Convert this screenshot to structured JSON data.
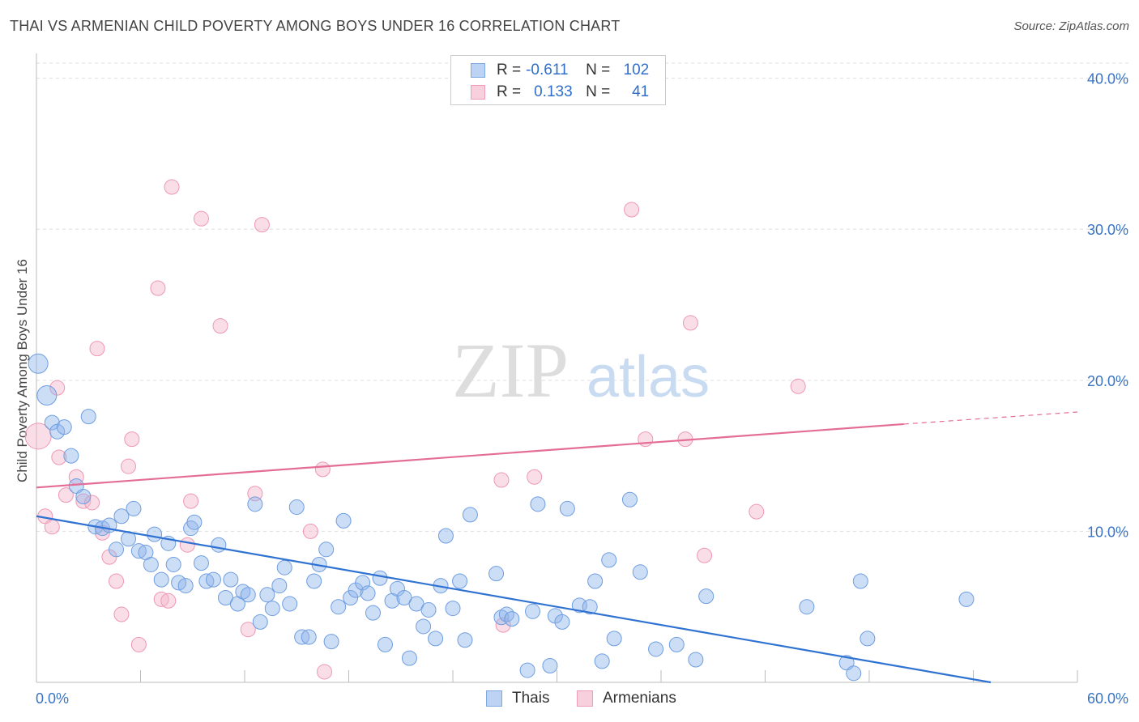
{
  "title": "THAI VS ARMENIAN CHILD POVERTY AMONG BOYS UNDER 16 CORRELATION CHART",
  "source": "Source: ZipAtlas.com",
  "watermark": {
    "zip": "ZIP",
    "atlas": "atlas"
  },
  "legend_top": {
    "r_label": "R =",
    "n_label": "N =",
    "thais": {
      "r": "-0.611",
      "n": "102"
    },
    "armenians": {
      "r": "0.133",
      "n": "41"
    }
  },
  "chart_data": {
    "type": "scatter",
    "title": "THAI VS ARMENIAN CHILD POVERTY AMONG BOYS UNDER 16 CORRELATION CHART",
    "xlabel": "",
    "ylabel": "Child Poverty Among Boys Under 16",
    "xlim": [
      0,
      60
    ],
    "ylim": [
      0,
      41
    ],
    "x_tick_labels": [
      "0.0%",
      "60.0%"
    ],
    "y_ticks": [
      10,
      20,
      30,
      40
    ],
    "y_tick_labels": [
      "10.0%",
      "20.0%",
      "30.0%",
      "40.0%"
    ],
    "grid": "horizontal dashed",
    "legend_position": "bottom-center",
    "series": [
      {
        "name": "Thais",
        "color": "#8fb4ea",
        "edge": "#6f9ee0",
        "trend": {
          "x0": 0,
          "y0": 11.0,
          "x1": 55,
          "y1": 0.0,
          "color": "#2f72d1"
        },
        "points": [
          [
            0.1,
            21.1
          ],
          [
            0.6,
            19.0
          ],
          [
            0.9,
            17.2
          ],
          [
            1.2,
            16.6
          ],
          [
            1.6,
            16.9
          ],
          [
            2.0,
            15.0
          ],
          [
            2.3,
            13.0
          ],
          [
            2.7,
            12.3
          ],
          [
            3.0,
            17.6
          ],
          [
            3.4,
            10.3
          ],
          [
            3.8,
            10.2
          ],
          [
            4.2,
            10.4
          ],
          [
            4.6,
            8.8
          ],
          [
            4.9,
            11.0
          ],
          [
            5.3,
            9.5
          ],
          [
            5.6,
            11.5
          ],
          [
            5.9,
            8.7
          ],
          [
            6.3,
            8.6
          ],
          [
            6.6,
            7.8
          ],
          [
            6.8,
            9.8
          ],
          [
            7.2,
            6.8
          ],
          [
            7.6,
            9.2
          ],
          [
            7.9,
            7.8
          ],
          [
            8.2,
            6.6
          ],
          [
            8.6,
            6.4
          ],
          [
            8.9,
            10.2
          ],
          [
            9.1,
            10.6
          ],
          [
            9.5,
            7.9
          ],
          [
            9.8,
            6.7
          ],
          [
            10.2,
            6.8
          ],
          [
            10.5,
            9.1
          ],
          [
            10.9,
            5.6
          ],
          [
            11.2,
            6.8
          ],
          [
            11.6,
            5.2
          ],
          [
            11.9,
            6.0
          ],
          [
            12.2,
            5.8
          ],
          [
            12.6,
            11.8
          ],
          [
            12.9,
            4.0
          ],
          [
            13.3,
            5.8
          ],
          [
            13.6,
            4.9
          ],
          [
            14.0,
            6.4
          ],
          [
            14.3,
            7.6
          ],
          [
            14.6,
            5.2
          ],
          [
            15.0,
            11.6
          ],
          [
            15.3,
            3.0
          ],
          [
            15.7,
            3.0
          ],
          [
            16.0,
            6.7
          ],
          [
            16.3,
            7.8
          ],
          [
            16.7,
            8.8
          ],
          [
            17.0,
            2.7
          ],
          [
            17.4,
            5.0
          ],
          [
            17.7,
            10.7
          ],
          [
            18.1,
            5.6
          ],
          [
            18.4,
            6.1
          ],
          [
            18.8,
            6.6
          ],
          [
            19.1,
            5.9
          ],
          [
            19.4,
            4.6
          ],
          [
            19.8,
            6.9
          ],
          [
            20.1,
            2.5
          ],
          [
            20.5,
            5.4
          ],
          [
            20.8,
            6.2
          ],
          [
            21.2,
            5.6
          ],
          [
            21.5,
            1.6
          ],
          [
            21.9,
            5.2
          ],
          [
            22.3,
            3.7
          ],
          [
            22.6,
            4.8
          ],
          [
            23.0,
            2.9
          ],
          [
            23.3,
            6.4
          ],
          [
            23.6,
            9.7
          ],
          [
            24.0,
            4.9
          ],
          [
            24.4,
            6.7
          ],
          [
            24.7,
            2.8
          ],
          [
            25.0,
            11.1
          ],
          [
            26.5,
            7.2
          ],
          [
            26.8,
            4.3
          ],
          [
            27.1,
            4.5
          ],
          [
            27.4,
            4.2
          ],
          [
            28.3,
            0.8
          ],
          [
            28.6,
            4.7
          ],
          [
            28.9,
            11.8
          ],
          [
            29.6,
            1.1
          ],
          [
            29.9,
            4.4
          ],
          [
            30.3,
            4.0
          ],
          [
            30.6,
            11.5
          ],
          [
            31.3,
            5.1
          ],
          [
            31.9,
            5.0
          ],
          [
            32.2,
            6.7
          ],
          [
            32.6,
            1.4
          ],
          [
            33.0,
            8.1
          ],
          [
            33.3,
            2.9
          ],
          [
            34.2,
            12.1
          ],
          [
            34.8,
            7.3
          ],
          [
            35.7,
            2.2
          ],
          [
            36.9,
            2.5
          ],
          [
            38.0,
            1.5
          ],
          [
            38.6,
            5.7
          ],
          [
            44.4,
            5.0
          ],
          [
            46.7,
            1.3
          ],
          [
            47.1,
            0.6
          ],
          [
            47.5,
            6.7
          ],
          [
            47.9,
            2.9
          ],
          [
            53.6,
            5.5
          ]
        ]
      },
      {
        "name": "Armenians",
        "color": "#f4b5ca",
        "edge": "#ee97b4",
        "trend": {
          "x0": 0,
          "y0": 12.9,
          "x1": 50,
          "y1": 17.1,
          "x2": 60,
          "y2": 17.9,
          "color": "#e46d97"
        },
        "points": [
          [
            0.1,
            16.3
          ],
          [
            0.5,
            11.0
          ],
          [
            0.9,
            10.3
          ],
          [
            1.2,
            19.5
          ],
          [
            1.3,
            14.9
          ],
          [
            1.7,
            12.4
          ],
          [
            2.3,
            13.6
          ],
          [
            2.7,
            12.0
          ],
          [
            3.2,
            11.9
          ],
          [
            3.5,
            22.1
          ],
          [
            3.8,
            9.9
          ],
          [
            4.2,
            8.3
          ],
          [
            4.6,
            6.7
          ],
          [
            4.9,
            4.5
          ],
          [
            5.3,
            14.3
          ],
          [
            5.5,
            16.1
          ],
          [
            5.9,
            2.5
          ],
          [
            7.0,
            26.1
          ],
          [
            7.2,
            5.5
          ],
          [
            7.6,
            5.4
          ],
          [
            7.8,
            32.8
          ],
          [
            8.7,
            9.1
          ],
          [
            8.9,
            12.0
          ],
          [
            9.5,
            30.7
          ],
          [
            10.6,
            23.6
          ],
          [
            12.2,
            3.5
          ],
          [
            12.6,
            12.5
          ],
          [
            13.0,
            30.3
          ],
          [
            15.8,
            10.0
          ],
          [
            16.5,
            14.1
          ],
          [
            16.6,
            0.7
          ],
          [
            26.8,
            13.4
          ],
          [
            26.9,
            3.8
          ],
          [
            28.7,
            13.6
          ],
          [
            34.3,
            31.3
          ],
          [
            35.1,
            16.1
          ],
          [
            37.4,
            16.1
          ],
          [
            37.7,
            23.8
          ],
          [
            38.5,
            8.4
          ],
          [
            41.5,
            11.3
          ],
          [
            43.9,
            19.6
          ]
        ]
      }
    ]
  },
  "legend_bottom": {
    "thais": "Thais",
    "armenians": "Armenians"
  }
}
